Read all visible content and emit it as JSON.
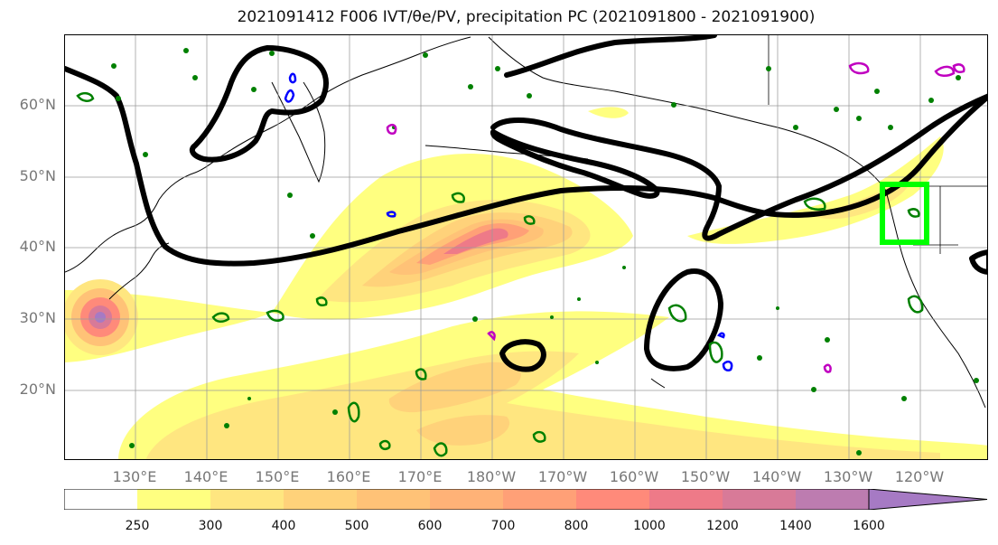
{
  "title": "2021091412 F006 IVT/θe/PV, precipitation PC (2021091800 - 2021091900)",
  "map": {
    "lat_labels": [
      "60°N",
      "50°N",
      "40°N",
      "30°N",
      "20°N"
    ],
    "lon_labels": [
      "130°E",
      "140°E",
      "150°E",
      "160°E",
      "170°E",
      "180°W",
      "170°W",
      "160°W",
      "150°W",
      "140°W",
      "130°W",
      "120°W"
    ],
    "grid": true,
    "highlight_box_color": "#00ff00",
    "contour_colors": {
      "ivt": "#000000",
      "theta_e": "#008000",
      "pv_pos": "#0000ff",
      "pv_neg": "#c000c0"
    }
  },
  "colorbar": {
    "levels": [
      "250",
      "300",
      "400",
      "500",
      "600",
      "700",
      "800",
      "1000",
      "1200",
      "1400",
      "1600"
    ],
    "colors": [
      "#ffffff",
      "#ffff80",
      "#ffe680",
      "#ffd27a",
      "#ffc277",
      "#ffb277",
      "#ffa077",
      "#ff8a7a",
      "#ee7a88",
      "#d87a98",
      "#bd7cb0",
      "#a67ac4"
    ],
    "extend": "max"
  }
}
